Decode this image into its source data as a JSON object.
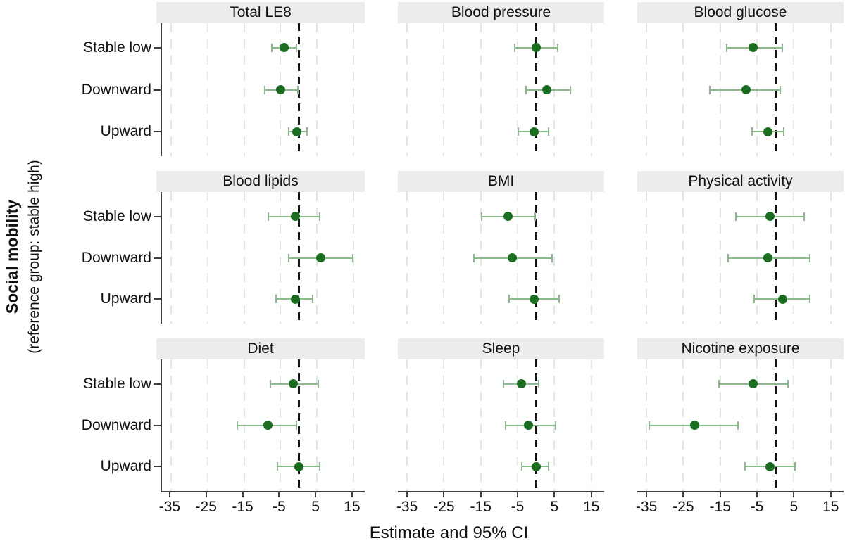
{
  "chart_data": {
    "type": "scatter",
    "subtype": "forest-plot",
    "title": "",
    "xlabel": "Estimate and 95% CI",
    "ylabel_line1": "Social mobility",
    "ylabel_line2": "(reference group: stable high)",
    "categories": [
      "Stable low",
      "Downward",
      "Upward"
    ],
    "x_ticks": [
      -35,
      -25,
      -15,
      -5,
      5,
      15
    ],
    "xlim": [
      -37.5,
      18.5
    ],
    "reference_line_x": 0,
    "grid": true,
    "panels": [
      {
        "title": "Total LE8",
        "estimates": [
          -4,
          -5,
          -0.5
        ],
        "ci_low": [
          -7.5,
          -9.5,
          -3
        ],
        "ci_high": [
          -0.5,
          0,
          2.5
        ]
      },
      {
        "title": "Blood pressure",
        "estimates": [
          0,
          3,
          -0.5
        ],
        "ci_low": [
          -6,
          -3,
          -5
        ],
        "ci_high": [
          6,
          9.5,
          3.5
        ]
      },
      {
        "title": "Blood glucose",
        "estimates": [
          -6,
          -8,
          -2
        ],
        "ci_low": [
          -13.5,
          -18,
          -6.5
        ],
        "ci_high": [
          2,
          1.5,
          2.5
        ]
      },
      {
        "title": "Blood lipids",
        "estimates": [
          -1,
          6,
          -1
        ],
        "ci_low": [
          -8.5,
          -3,
          -6.5
        ],
        "ci_high": [
          6,
          15,
          4
        ]
      },
      {
        "title": "BMI",
        "estimates": [
          -7.5,
          -6.5,
          -0.5
        ],
        "ci_low": [
          -15,
          -17,
          -7.5
        ],
        "ci_high": [
          0,
          4.5,
          6.5
        ]
      },
      {
        "title": "Physical activity",
        "estimates": [
          -1.5,
          -2,
          2
        ],
        "ci_low": [
          -11,
          -13,
          -6
        ],
        "ci_high": [
          8,
          9.5,
          9.5
        ]
      },
      {
        "title": "Diet",
        "estimates": [
          -1.5,
          -8.5,
          0
        ],
        "ci_low": [
          -8,
          -17,
          -6
        ],
        "ci_high": [
          5.5,
          -0.5,
          6
        ]
      },
      {
        "title": "Sleep",
        "estimates": [
          -4,
          -2,
          0
        ],
        "ci_low": [
          -9,
          -8.5,
          -4
        ],
        "ci_high": [
          1,
          5.5,
          3.5
        ]
      },
      {
        "title": "Nicotine exposure",
        "estimates": [
          -6,
          -22,
          -1.5
        ],
        "ci_low": [
          -15.5,
          -34.5,
          -8.5
        ],
        "ci_high": [
          3.5,
          -10,
          5.5
        ]
      }
    ],
    "colors": {
      "point": "#1a6e1f",
      "ci_line": "#8abb8a",
      "reference_line": "#141414",
      "gridline": "#e2e7e2",
      "header_bg": "#ececec",
      "axis": "#3d3d3d"
    },
    "legend_position": "none"
  }
}
